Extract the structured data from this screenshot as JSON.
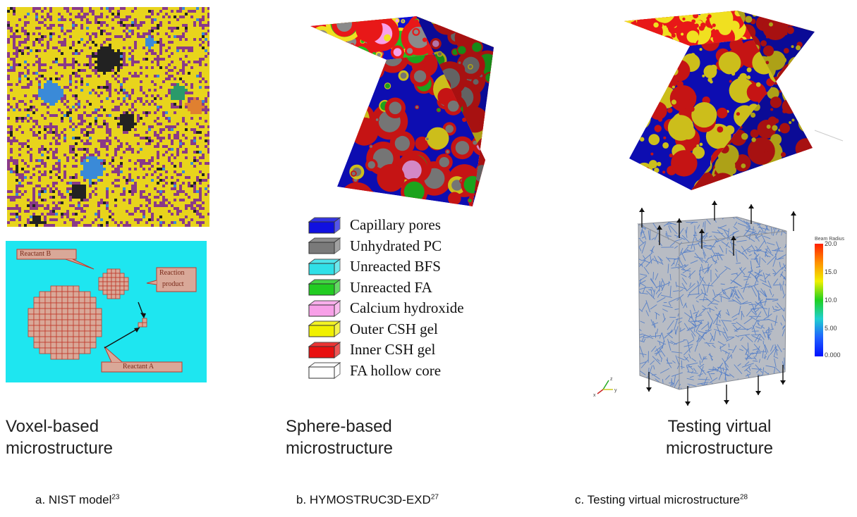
{
  "panel_a": {
    "caption_lines": [
      "Voxel-based",
      "microstructure"
    ],
    "label_prefix": "a.  NIST model",
    "label_ref": "23",
    "reaction_labels": {
      "reactant_b": "Reactant B",
      "reactant_a": "Reactant A",
      "product_line1": "Reaction",
      "product_line2": "product"
    }
  },
  "panel_b": {
    "caption_lines": [
      "Sphere-based",
      "microstructure"
    ],
    "label_prefix": "b. HYMOSTRUC3D-EXD",
    "label_ref": "27",
    "legend": [
      {
        "label": "Capillary pores",
        "color": "#1010e0"
      },
      {
        "label": "Unhydrated PC",
        "color": "#7a7a7a"
      },
      {
        "label": "Unreacted BFS",
        "color": "#30e0e8"
      },
      {
        "label": "Unreacted FA",
        "color": "#22cc22"
      },
      {
        "label": "Calcium hydroxide",
        "color": "#f8a0e8"
      },
      {
        "label": "Outer CSH gel",
        "color": "#f0f000"
      },
      {
        "label": "Inner CSH gel",
        "color": "#e81010"
      },
      {
        "label": "FA hollow core",
        "color": "#ffffff"
      }
    ]
  },
  "panel_c": {
    "caption_lines": [
      "Testing virtual",
      "microstructure"
    ],
    "label_prefix": "c. Testing virtual microstructure",
    "label_ref": "28",
    "colorbar": {
      "title": "Beam Radius",
      "ticks": [
        "20.0",
        "15.0",
        "10.0",
        "5.00",
        "0.000"
      ]
    },
    "axes_triad": {
      "z": "z",
      "x": "x",
      "y": "y"
    }
  },
  "colors": {
    "voxel_yellow": "#e8d41c",
    "voxel_purple": "#8a3a88",
    "voxel_black": "#222222",
    "voxel_blue": "#3a8ad8",
    "reaction_bg": "#1ee6f0",
    "reaction_box": "#d9a898",
    "reaction_grid": "#c0392b",
    "cube_blue": "#1010d0",
    "cube_red": "#e81818",
    "cube_yellow": "#f0e020",
    "cube_green": "#22c022",
    "cube_grey": "#8a8a8a",
    "lattice_blue": "#3a6ec8"
  }
}
